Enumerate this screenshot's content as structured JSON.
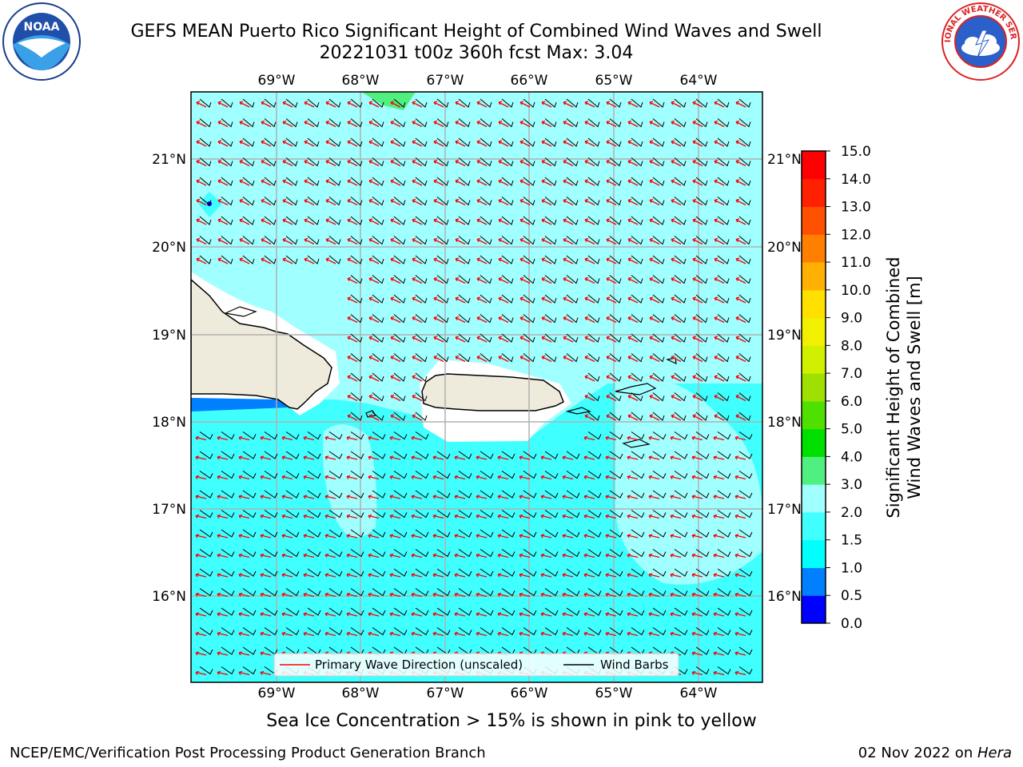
{
  "title": {
    "line1": "GEFS MEAN Puerto Rico Significant Height of Combined Wind Waves and Swell",
    "line2": "20221031 t00z 360h fcst   Max: 3.04"
  },
  "logos": {
    "left_icon": "noaa-logo",
    "right_icon": "nws-logo"
  },
  "map": {
    "lon_ticks": [
      "69°W",
      "68°W",
      "67°W",
      "66°W",
      "65°W",
      "64°W"
    ],
    "lat_ticks": [
      "21°N",
      "20°N",
      "19°N",
      "18°N",
      "17°N",
      "16°N"
    ],
    "legend": {
      "wave_direction": "Primary Wave Direction (unscaled)",
      "wind_barbs": "Wind Barbs"
    },
    "colors": {
      "land": "#efebdc",
      "wave_arrow": "#ff0000",
      "barb": "#000000",
      "grid": "#b0b0b0"
    }
  },
  "colorbar": {
    "label_line1": "Significant Height of Combined",
    "label_line2": "Wind Waves and Swell [m]",
    "levels": [
      "0.0",
      "0.5",
      "1.0",
      "1.5",
      "2.0",
      "3.0",
      "4.0",
      "5.0",
      "6.0",
      "7.0",
      "8.0",
      "9.0",
      "10.0",
      "11.0",
      "12.0",
      "13.0",
      "14.0",
      "15.0"
    ],
    "colors": [
      "#0000ff",
      "#0080ff",
      "#00ffff",
      "#40ffff",
      "#a0ffff",
      "#50f080",
      "#00e000",
      "#50e000",
      "#a0e000",
      "#d0f000",
      "#f0f000",
      "#ffe000",
      "#ffb000",
      "#ff8000",
      "#ff5000",
      "#ff2000",
      "#ff0000"
    ]
  },
  "subtitle": "Sea Ice Concentration > 15% is shown in pink to yellow",
  "footer": {
    "left": "NCEP/EMC/Verification Post Processing Product Generation Branch",
    "right_date": "02 Nov 2022 on ",
    "right_host": "Hera"
  }
}
